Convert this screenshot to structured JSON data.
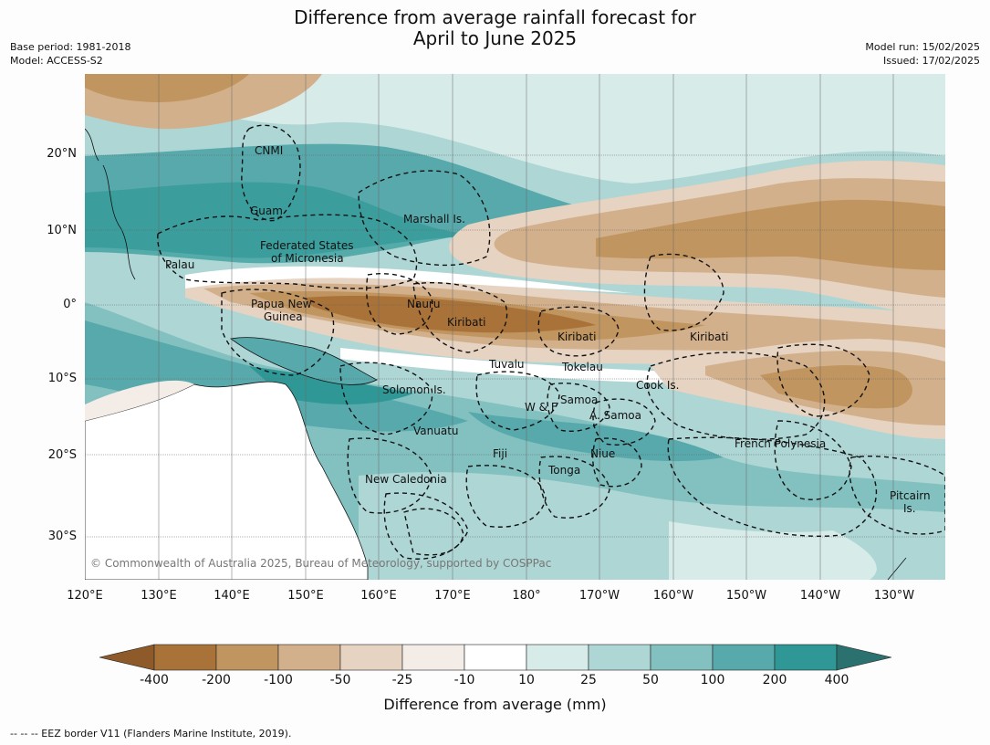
{
  "title_line1": "Difference from average rainfall forecast for",
  "title_line2": "April to June 2025",
  "meta_left": [
    "Base period: 1981-2018",
    "Model: ACCESS-S2"
  ],
  "meta_right": [
    "Model run: 15/02/2025",
    "Issued: 17/02/2025"
  ],
  "lat_labels": [
    "20°N",
    "10°N",
    "0°",
    "10°S",
    "20°S",
    "30°S"
  ],
  "lon_labels": [
    "120°E",
    "130°E",
    "140°E",
    "150°E",
    "160°E",
    "170°E",
    "180°",
    "170°W",
    "160°W",
    "150°W",
    "140°W",
    "130°W"
  ],
  "places": [
    "CNMI",
    "Guam",
    "Marshall Is.",
    "Federated States",
    "of Micronesia",
    "Palau",
    "Papua New",
    "Guinea",
    "Nauru",
    "Kiribati",
    "Kiribati",
    "Kiribati",
    "Tuvalu",
    "Tokelau",
    "Cook Is.",
    "Solomon Is.",
    "W & F",
    "Samoa",
    "A. Samoa",
    "Vanuatu",
    "Fiji",
    "Niue",
    "Tonga",
    "French Polynesia",
    "New Caledonia",
    "Pitcairn",
    "Is."
  ],
  "copyright": "© Commonwealth of Australia 2025, Bureau of Meteorology, supported by COSPPac",
  "colorbar": {
    "label": "Difference from average (mm)",
    "ticks": [
      "-400",
      "-200",
      "-100",
      "-50",
      "-25",
      "-10",
      "10",
      "25",
      "50",
      "100",
      "200",
      "400"
    ],
    "colors": [
      "#8f5a2a",
      "#a97239",
      "#c0955f",
      "#d3b08c",
      "#e6d3c2",
      "#f4ece6",
      "#ffffff",
      "#d7ebe9",
      "#aed6d5",
      "#83c0c0",
      "#58a9ab",
      "#2f9896",
      "#2a716f"
    ]
  },
  "footnote": "--  --  -- EEZ border V11 (Flanders Marine Institute, 2019)."
}
